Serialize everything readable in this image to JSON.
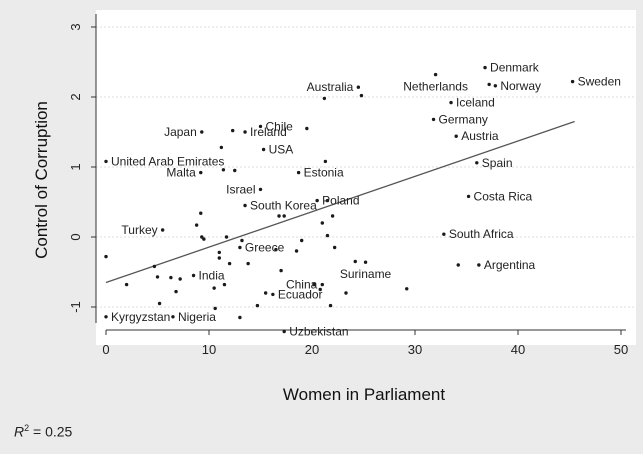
{
  "chart_data": {
    "type": "scatter",
    "xlabel": "Women in Parliament",
    "ylabel": "Control of Corruption",
    "xlim": [
      0,
      50
    ],
    "ylim": [
      -1.3,
      3.1
    ],
    "xticks": [
      "0",
      "10",
      "20",
      "30",
      "40",
      "50"
    ],
    "yticks": [
      "-1",
      "0",
      "1",
      "2",
      "3"
    ],
    "grid": "horizontal dashed",
    "fit_line": {
      "x": [
        0,
        45.5
      ],
      "y": [
        -0.65,
        1.65
      ]
    },
    "annotation": {
      "r_label": "R",
      "r_exp": "2",
      "r_value": "= 0.25"
    },
    "labeled_points": [
      {
        "x": 0.0,
        "y": 1.08,
        "label": "United Arab Emirates",
        "side": "right"
      },
      {
        "x": 9.3,
        "y": 1.5,
        "label": "Japan",
        "side": "left"
      },
      {
        "x": 9.2,
        "y": 0.92,
        "label": "Malta",
        "side": "left"
      },
      {
        "x": 13.5,
        "y": 1.5,
        "label": "Ireland",
        "side": "right"
      },
      {
        "x": 15.0,
        "y": 1.58,
        "label": "Chile",
        "side": "right"
      },
      {
        "x": 15.3,
        "y": 1.25,
        "label": "USA",
        "side": "right"
      },
      {
        "x": 15.0,
        "y": 0.68,
        "label": "Israel",
        "side": "left"
      },
      {
        "x": 13.5,
        "y": 0.45,
        "label": "South Korea",
        "side": "right"
      },
      {
        "x": 18.7,
        "y": 0.92,
        "label": "Estonia",
        "side": "right"
      },
      {
        "x": 20.5,
        "y": 0.52,
        "label": "Poland",
        "side": "right"
      },
      {
        "x": 24.5,
        "y": 2.14,
        "label": "Australia",
        "side": "left"
      },
      {
        "x": 5.5,
        "y": 0.1,
        "label": "Turkey",
        "side": "left"
      },
      {
        "x": 13.0,
        "y": -0.15,
        "label": "Greece",
        "side": "right"
      },
      {
        "x": 8.5,
        "y": -0.55,
        "label": "India",
        "side": "right"
      },
      {
        "x": 6.5,
        "y": -1.14,
        "label": "Nigeria",
        "side": "right"
      },
      {
        "x": 0.0,
        "y": -1.14,
        "label": "Kyrgyzstan",
        "side": "right"
      },
      {
        "x": 16.2,
        "y": -0.82,
        "label": "Ecuador",
        "side": "right"
      },
      {
        "x": 21.0,
        "y": -0.68,
        "label": "China",
        "side": "left"
      },
      {
        "x": 17.3,
        "y": -1.35,
        "label": "Uzbekistan",
        "side": "right"
      },
      {
        "x": 25.2,
        "y": -0.36,
        "label": "Suriname",
        "side": "below"
      },
      {
        "x": 32.0,
        "y": 2.32,
        "label": "Netherlands",
        "side": "below"
      },
      {
        "x": 36.8,
        "y": 2.42,
        "label": "Denmark",
        "side": "right"
      },
      {
        "x": 37.8,
        "y": 2.16,
        "label": "Norway",
        "side": "right"
      },
      {
        "x": 45.3,
        "y": 2.22,
        "label": "Sweden",
        "side": "right"
      },
      {
        "x": 33.5,
        "y": 1.92,
        "label": "Iceland",
        "side": "right"
      },
      {
        "x": 31.8,
        "y": 1.68,
        "label": "Germany",
        "side": "right"
      },
      {
        "x": 34.0,
        "y": 1.44,
        "label": "Austria",
        "side": "right"
      },
      {
        "x": 36.0,
        "y": 1.06,
        "label": "Spain",
        "side": "right"
      },
      {
        "x": 35.2,
        "y": 0.58,
        "label": "Costa Rica",
        "side": "right"
      },
      {
        "x": 32.8,
        "y": 0.04,
        "label": "South Africa",
        "side": "right"
      },
      {
        "x": 36.2,
        "y": -0.4,
        "label": "Argentina",
        "side": "right"
      }
    ],
    "unlabeled_points": [
      {
        "x": 0.0,
        "y": -0.28
      },
      {
        "x": 2.0,
        "y": -0.68
      },
      {
        "x": 4.7,
        "y": -0.42
      },
      {
        "x": 5.0,
        "y": -0.57
      },
      {
        "x": 5.2,
        "y": -0.95
      },
      {
        "x": 6.3,
        "y": -0.58
      },
      {
        "x": 6.8,
        "y": -0.78
      },
      {
        "x": 7.2,
        "y": -0.6
      },
      {
        "x": 8.8,
        "y": 0.17
      },
      {
        "x": 9.2,
        "y": 0.34
      },
      {
        "x": 9.3,
        "y": 0.0
      },
      {
        "x": 9.5,
        "y": -0.03
      },
      {
        "x": 10.5,
        "y": -0.73
      },
      {
        "x": 10.6,
        "y": -1.02
      },
      {
        "x": 11.0,
        "y": -0.22
      },
      {
        "x": 11.0,
        "y": -0.3
      },
      {
        "x": 11.5,
        "y": -0.68
      },
      {
        "x": 11.7,
        "y": 0.0
      },
      {
        "x": 11.2,
        "y": 1.28
      },
      {
        "x": 11.4,
        "y": 0.96
      },
      {
        "x": 12.0,
        "y": -0.38
      },
      {
        "x": 12.5,
        "y": 0.95
      },
      {
        "x": 12.3,
        "y": 1.52
      },
      {
        "x": 13.2,
        "y": -0.05
      },
      {
        "x": 13.8,
        "y": -0.38
      },
      {
        "x": 13.0,
        "y": -1.15
      },
      {
        "x": 14.7,
        "y": -0.98
      },
      {
        "x": 15.5,
        "y": -0.8
      },
      {
        "x": 16.5,
        "y": -0.18
      },
      {
        "x": 16.8,
        "y": 0.3
      },
      {
        "x": 17.0,
        "y": -0.48
      },
      {
        "x": 17.3,
        "y": 0.3
      },
      {
        "x": 18.5,
        "y": -0.2
      },
      {
        "x": 19.0,
        "y": -0.05
      },
      {
        "x": 19.5,
        "y": 1.55
      },
      {
        "x": 20.2,
        "y": -0.68
      },
      {
        "x": 20.8,
        "y": -0.75
      },
      {
        "x": 21.0,
        "y": 0.2
      },
      {
        "x": 21.5,
        "y": 0.52
      },
      {
        "x": 21.5,
        "y": 0.02
      },
      {
        "x": 21.8,
        "y": -0.98
      },
      {
        "x": 22.0,
        "y": 0.3
      },
      {
        "x": 22.2,
        "y": -0.15
      },
      {
        "x": 21.2,
        "y": 1.98
      },
      {
        "x": 21.3,
        "y": 1.08
      },
      {
        "x": 23.3,
        "y": -0.8
      },
      {
        "x": 24.2,
        "y": -0.35
      },
      {
        "x": 24.8,
        "y": 2.02
      },
      {
        "x": 29.2,
        "y": -0.74
      },
      {
        "x": 34.2,
        "y": -0.4
      },
      {
        "x": 37.2,
        "y": 2.18
      }
    ]
  }
}
